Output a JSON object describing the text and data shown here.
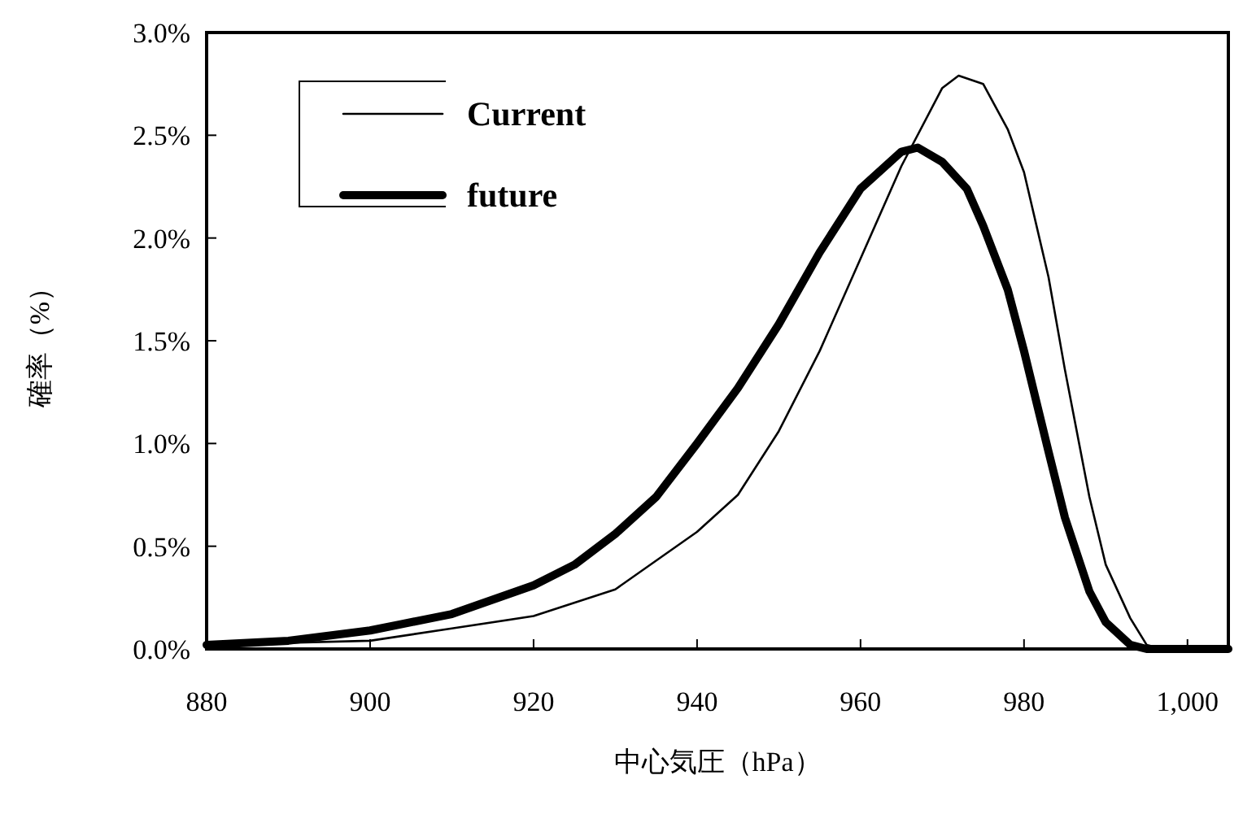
{
  "chart_data": {
    "type": "line",
    "xlabel": "中心気圧（hPa）",
    "ylabel": "確率（%）",
    "xlim": [
      880,
      1005
    ],
    "ylim": [
      0,
      3
    ],
    "xticks": [
      880,
      900,
      920,
      940,
      960,
      980,
      {
        "value": 1000,
        "label": "1,000"
      }
    ],
    "yticks": [
      {
        "value": 0,
        "label": "0.0%"
      },
      {
        "value": 0.5,
        "label": "0.5%"
      },
      {
        "value": 1,
        "label": "1.0%"
      },
      {
        "value": 1.5,
        "label": "1.5%"
      },
      {
        "value": 2,
        "label": "2.0%"
      },
      {
        "value": 2.5,
        "label": "2.5%"
      },
      {
        "value": 3,
        "label": "3.0%"
      }
    ],
    "legend": "top left",
    "series": [
      {
        "name": "Current",
        "color": "#000000",
        "x": [
          880,
          900,
          910,
          920,
          930,
          940,
          945,
          950,
          955,
          960,
          965,
          970,
          972,
          975,
          978,
          980,
          983,
          985,
          988,
          990,
          993,
          995,
          997,
          1005
        ],
        "values": [
          0.02,
          0.04,
          0.1,
          0.16,
          0.29,
          0.57,
          0.75,
          1.06,
          1.45,
          1.9,
          2.35,
          2.73,
          2.79,
          2.75,
          2.53,
          2.32,
          1.81,
          1.36,
          0.74,
          0.41,
          0.15,
          0.02,
          0,
          0
        ]
      },
      {
        "name": "future",
        "color": "#000000",
        "x": [
          880,
          890,
          900,
          910,
          920,
          925,
          930,
          935,
          940,
          945,
          950,
          955,
          960,
          965,
          967,
          970,
          973,
          975,
          978,
          980,
          983,
          985,
          988,
          990,
          993,
          995,
          1005
        ],
        "values": [
          0.02,
          0.04,
          0.09,
          0.17,
          0.31,
          0.41,
          0.56,
          0.74,
          1.0,
          1.27,
          1.58,
          1.93,
          2.24,
          2.42,
          2.44,
          2.37,
          2.24,
          2.06,
          1.75,
          1.45,
          0.96,
          0.64,
          0.28,
          0.13,
          0.02,
          0,
          0
        ]
      }
    ]
  }
}
